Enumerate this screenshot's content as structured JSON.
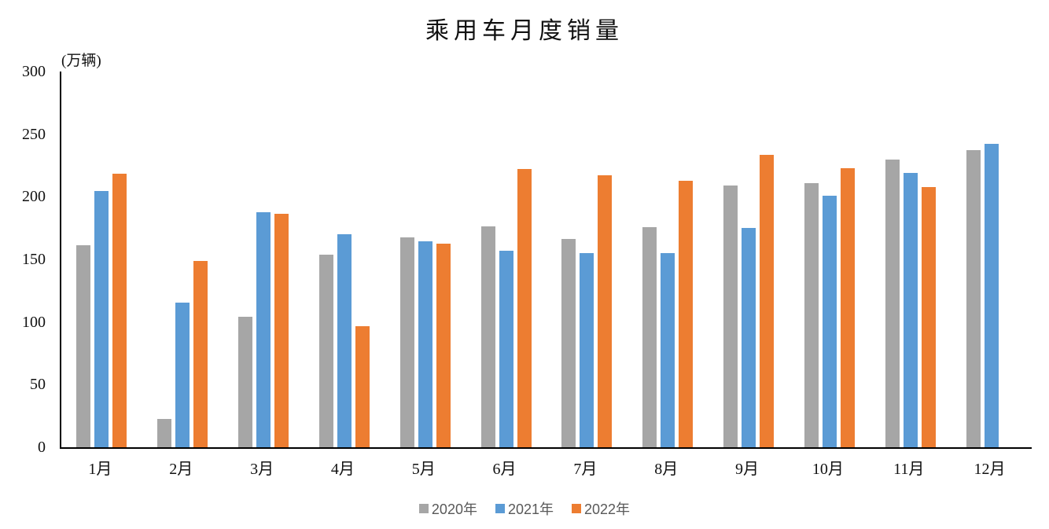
{
  "chart_data": {
    "type": "bar",
    "title": "乘用车月度销量",
    "unit_label": "(万辆)",
    "xlabel": "",
    "ylabel": "万辆",
    "ylim": [
      0,
      300
    ],
    "yticks": [
      0,
      50,
      100,
      150,
      200,
      250,
      300
    ],
    "grid": false,
    "legend_position": "bottom",
    "axis_color": "#000000",
    "legend_text_color": "#595959",
    "categories": [
      "1月",
      "2月",
      "3月",
      "4月",
      "5月",
      "6月",
      "7月",
      "8月",
      "9月",
      "10月",
      "11月",
      "12月"
    ],
    "series": [
      {
        "name": "2020年",
        "color": "#a6a6a6",
        "values": [
          161.6,
          22.4,
          104.3,
          153.6,
          167.4,
          176.4,
          166.5,
          175.5,
          208.8,
          211.0,
          229.7,
          237.5
        ]
      },
      {
        "name": "2021年",
        "color": "#5b9bd5",
        "values": [
          204.5,
          115.5,
          187.4,
          170.4,
          164.6,
          156.9,
          155.1,
          155.2,
          175.1,
          200.7,
          219.2,
          242.2
        ]
      },
      {
        "name": "2022年",
        "color": "#ed7d31",
        "values": [
          218.6,
          148.7,
          186.4,
          96.5,
          162.3,
          222.2,
          217.4,
          212.5,
          233.2,
          223.1,
          207.9,
          null
        ]
      }
    ]
  }
}
